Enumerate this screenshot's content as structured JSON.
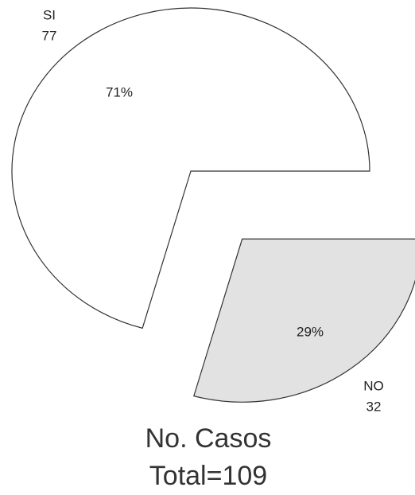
{
  "chart_data": {
    "type": "pie",
    "title": "No. Casos",
    "subtitle": "Total=109",
    "categories": [
      "SI",
      "NO"
    ],
    "values": [
      77,
      32
    ],
    "percentages": [
      71,
      29
    ],
    "percentage_labels": [
      "71%",
      "29%"
    ],
    "colors": [
      "#ffffff",
      "#e2e2e2"
    ]
  }
}
